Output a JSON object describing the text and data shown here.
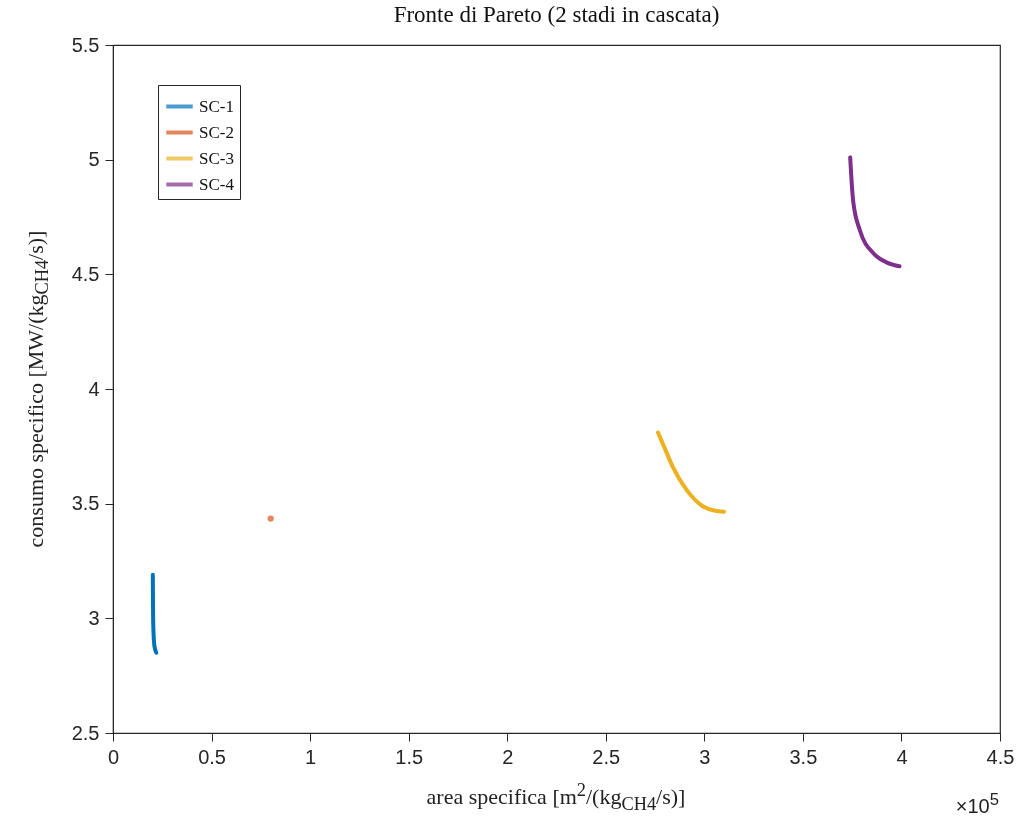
{
  "chart_data": {
    "type": "line",
    "title": "Fronte di Pareto (2 stadi in cascata)",
    "xlabel": "area specifica [m$^{2}$/(kg$_{CH4}$/s)]",
    "ylabel": "consumo specifico [MW/(kg$_{CH4}$/s)]",
    "annotations": [
      "×10$^{5}$"
    ],
    "xlim": [
      0,
      4.5
    ],
    "xticks": [
      0,
      0.5,
      1,
      1.5,
      2,
      2.5,
      3,
      3.5,
      4,
      4.5
    ],
    "ylim": [
      2.5,
      5.5
    ],
    "yticks": [
      2.5,
      3,
      3.5,
      4,
      4.5,
      5,
      5.5
    ],
    "grid": false,
    "legend": "top left",
    "marker": "none",
    "line_style": "solid",
    "series": [
      {
        "name": "SC-1",
        "color": "#0072bd",
        "x": [
          0.202,
          0.203,
          0.205,
          0.21,
          0.22
        ],
        "values": [
          3.19,
          3.05,
          2.95,
          2.88,
          2.85
        ]
      },
      {
        "name": "SC-2",
        "color": "#d95319",
        "type": "scatter",
        "x": [
          0.8
        ],
        "values": [
          3.435
        ]
      },
      {
        "name": "SC-3",
        "color": "#edb120",
        "x": [
          2.765,
          2.8,
          2.84,
          2.91,
          2.99,
          3.05,
          3.1
        ],
        "values": [
          3.81,
          3.74,
          3.66,
          3.56,
          3.49,
          3.47,
          3.465
        ]
      },
      {
        "name": "SC-4",
        "color": "#7e2f8e",
        "x": [
          3.74,
          3.755,
          3.79,
          3.86,
          3.93,
          3.99
        ],
        "values": [
          5.01,
          4.82,
          4.69,
          4.59,
          4.55,
          4.535
        ]
      }
    ]
  }
}
